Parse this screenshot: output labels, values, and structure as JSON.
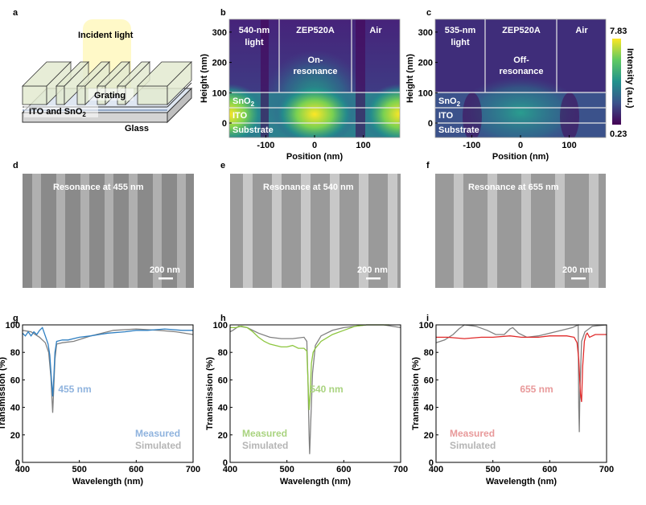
{
  "panels": {
    "a": {
      "letter": "a",
      "incident": "Incident light",
      "grating": "Grating",
      "ito_sno2": "ITO and SnO",
      "ito_sub": "2",
      "glass": "Glass"
    },
    "b": {
      "letter": "b",
      "light": [
        "540-nm",
        "light"
      ],
      "resist": "ZEP520A",
      "state": [
        "On-",
        "resonance"
      ],
      "air": "Air",
      "sno2": "SnO",
      "sno2_sub": "2",
      "ito": "ITO",
      "substrate": "Substrate"
    },
    "c": {
      "letter": "c",
      "light": [
        "535-nm",
        "light"
      ],
      "resist": "ZEP520A",
      "state": [
        "Off-",
        "resonance"
      ],
      "air": "Air",
      "sno2": "SnO",
      "sno2_sub": "2",
      "ito": "ITO",
      "substrate": "Substrate"
    },
    "d": {
      "letter": "d",
      "title": "Resonance at 455 nm",
      "scale": "200 nm"
    },
    "e": {
      "letter": "e",
      "title": "Resonance at 540 nm",
      "scale": "200 nm"
    },
    "f": {
      "letter": "f",
      "title": "Resonance at 655 nm",
      "scale": "200 nm"
    }
  },
  "field_maps": {
    "xlabel": "Position (nm)",
    "ylabel": "Height (nm)",
    "xticks": [
      "-100",
      "0",
      "100"
    ],
    "yticks": [
      "0",
      "100",
      "200",
      "300"
    ],
    "colorbar": {
      "label": "Intensity (a.u.)",
      "max": "7.83",
      "min": "0.23",
      "colormap": "viridis"
    }
  },
  "chart_data": [
    {
      "panel": "g",
      "letter": "g",
      "type": "line",
      "xlabel": "Wavelength (nm)",
      "ylabel": "Transmission (%)",
      "xlim": [
        400,
        700
      ],
      "ylim": [
        0,
        100
      ],
      "xticks": [
        "400",
        "500",
        "600",
        "700"
      ],
      "yticks": [
        "0",
        "20",
        "40",
        "60",
        "80",
        "100"
      ],
      "annotation": "455 nm",
      "annotation_color": "#8fb3de",
      "series": [
        {
          "name": "Measured",
          "color": "#2f7fc1",
          "legend_color": "#8fb3de",
          "points": [
            [
              400,
              94
            ],
            [
              405,
              92
            ],
            [
              410,
              95
            ],
            [
              415,
              92
            ],
            [
              420,
              95
            ],
            [
              425,
              93
            ],
            [
              430,
              96
            ],
            [
              435,
              98
            ],
            [
              440,
              92
            ],
            [
              445,
              86
            ],
            [
              448,
              78
            ],
            [
              451,
              60
            ],
            [
              453,
              48
            ],
            [
              455,
              62
            ],
            [
              457,
              80
            ],
            [
              460,
              88
            ],
            [
              470,
              89
            ],
            [
              480,
              89
            ],
            [
              500,
              91
            ],
            [
              520,
              92
            ],
            [
              550,
              94
            ],
            [
              580,
              95
            ],
            [
              600,
              96
            ],
            [
              620,
              96
            ],
            [
              650,
              97
            ],
            [
              680,
              96
            ],
            [
              700,
              96
            ]
          ]
        },
        {
          "name": "Simulated",
          "color": "#808080",
          "legend_color": "#b5b5b5",
          "points": [
            [
              400,
              96
            ],
            [
              415,
              95
            ],
            [
              430,
              91
            ],
            [
              440,
              87
            ],
            [
              446,
              80
            ],
            [
              450,
              62
            ],
            [
              452,
              45
            ],
            [
              453,
              36
            ],
            [
              455,
              55
            ],
            [
              457,
              75
            ],
            [
              460,
              86
            ],
            [
              470,
              87
            ],
            [
              490,
              88
            ],
            [
              520,
              92
            ],
            [
              560,
              96
            ],
            [
              600,
              97
            ],
            [
              640,
              96
            ],
            [
              670,
              95
            ],
            [
              700,
              93
            ]
          ]
        }
      ]
    },
    {
      "panel": "h",
      "letter": "h",
      "type": "line",
      "xlabel": "Wavelength (nm)",
      "ylabel": "Transmission (%)",
      "xlim": [
        400,
        700
      ],
      "ylim": [
        0,
        100
      ],
      "xticks": [
        "400",
        "500",
        "600",
        "700"
      ],
      "yticks": [
        "0",
        "20",
        "40",
        "60",
        "80",
        "100"
      ],
      "annotation": "540 nm",
      "annotation_color": "#a9d37f",
      "series": [
        {
          "name": "Measured",
          "color": "#8dc63f",
          "legend_color": "#a9d37f",
          "points": [
            [
              400,
              98
            ],
            [
              410,
              98
            ],
            [
              420,
              99
            ],
            [
              430,
              98
            ],
            [
              440,
              95
            ],
            [
              450,
              91
            ],
            [
              460,
              88
            ],
            [
              470,
              86
            ],
            [
              480,
              85
            ],
            [
              490,
              84
            ],
            [
              500,
              84
            ],
            [
              510,
              85
            ],
            [
              520,
              83
            ],
            [
              530,
              83
            ],
            [
              535,
              81
            ],
            [
              537,
              60
            ],
            [
              539,
              38
            ],
            [
              541,
              50
            ],
            [
              543,
              72
            ],
            [
              546,
              80
            ],
            [
              550,
              83
            ],
            [
              560,
              88
            ],
            [
              580,
              93
            ],
            [
              600,
              96
            ],
            [
              620,
              99
            ],
            [
              640,
              100
            ],
            [
              660,
              100
            ],
            [
              680,
              100
            ]
          ]
        },
        {
          "name": "Simulated",
          "color": "#808080",
          "legend_color": "#b5b5b5",
          "points": [
            [
              400,
              95
            ],
            [
              405,
              96
            ],
            [
              415,
              99
            ],
            [
              430,
              98
            ],
            [
              450,
              94
            ],
            [
              470,
              91
            ],
            [
              490,
              90
            ],
            [
              510,
              90
            ],
            [
              530,
              91
            ],
            [
              535,
              88
            ],
            [
              537,
              60
            ],
            [
              539,
              20
            ],
            [
              540,
              6
            ],
            [
              542,
              30
            ],
            [
              545,
              65
            ],
            [
              550,
              85
            ],
            [
              560,
              92
            ],
            [
              580,
              96
            ],
            [
              600,
              98
            ],
            [
              640,
              100
            ],
            [
              670,
              100
            ],
            [
              700,
              98
            ]
          ]
        }
      ]
    },
    {
      "panel": "i",
      "letter": "i",
      "type": "line",
      "xlabel": "Wavelength (nm)",
      "ylabel": "Transmission (%)",
      "xlim": [
        400,
        700
      ],
      "ylim": [
        0,
        100
      ],
      "xticks": [
        "400",
        "500",
        "600",
        "700"
      ],
      "yticks": [
        "0",
        "20",
        "40",
        "60",
        "80",
        "100"
      ],
      "annotation": "655 nm",
      "annotation_color": "#e8999a",
      "series": [
        {
          "name": "Measured",
          "color": "#e02a2a",
          "legend_color": "#e8999a",
          "points": [
            [
              400,
              91
            ],
            [
              420,
              91
            ],
            [
              450,
              90
            ],
            [
              480,
              91
            ],
            [
              500,
              91
            ],
            [
              530,
              92
            ],
            [
              550,
              91
            ],
            [
              580,
              91
            ],
            [
              600,
              92
            ],
            [
              630,
              92
            ],
            [
              643,
              91
            ],
            [
              648,
              87
            ],
            [
              651,
              75
            ],
            [
              654,
              50
            ],
            [
              656,
              44
            ],
            [
              658,
              70
            ],
            [
              661,
              88
            ],
            [
              664,
              93
            ],
            [
              666,
              94
            ],
            [
              670,
              91
            ],
            [
              680,
              93
            ],
            [
              700,
              93
            ]
          ]
        },
        {
          "name": "Simulated",
          "color": "#808080",
          "legend_color": "#b5b5b5",
          "points": [
            [
              400,
              87
            ],
            [
              415,
              89
            ],
            [
              430,
              93
            ],
            [
              440,
              97
            ],
            [
              450,
              100
            ],
            [
              470,
              99
            ],
            [
              490,
              96
            ],
            [
              505,
              93
            ],
            [
              520,
              93
            ],
            [
              530,
              97
            ],
            [
              535,
              98
            ],
            [
              545,
              94
            ],
            [
              560,
              91
            ],
            [
              580,
              92
            ],
            [
              610,
              95
            ],
            [
              640,
              98
            ],
            [
              650,
              100
            ],
            [
              651,
              40
            ],
            [
              652,
              22
            ],
            [
              653,
              50
            ],
            [
              656,
              88
            ],
            [
              662,
              95
            ],
            [
              675,
              99
            ],
            [
              700,
              100
            ]
          ]
        }
      ]
    }
  ]
}
